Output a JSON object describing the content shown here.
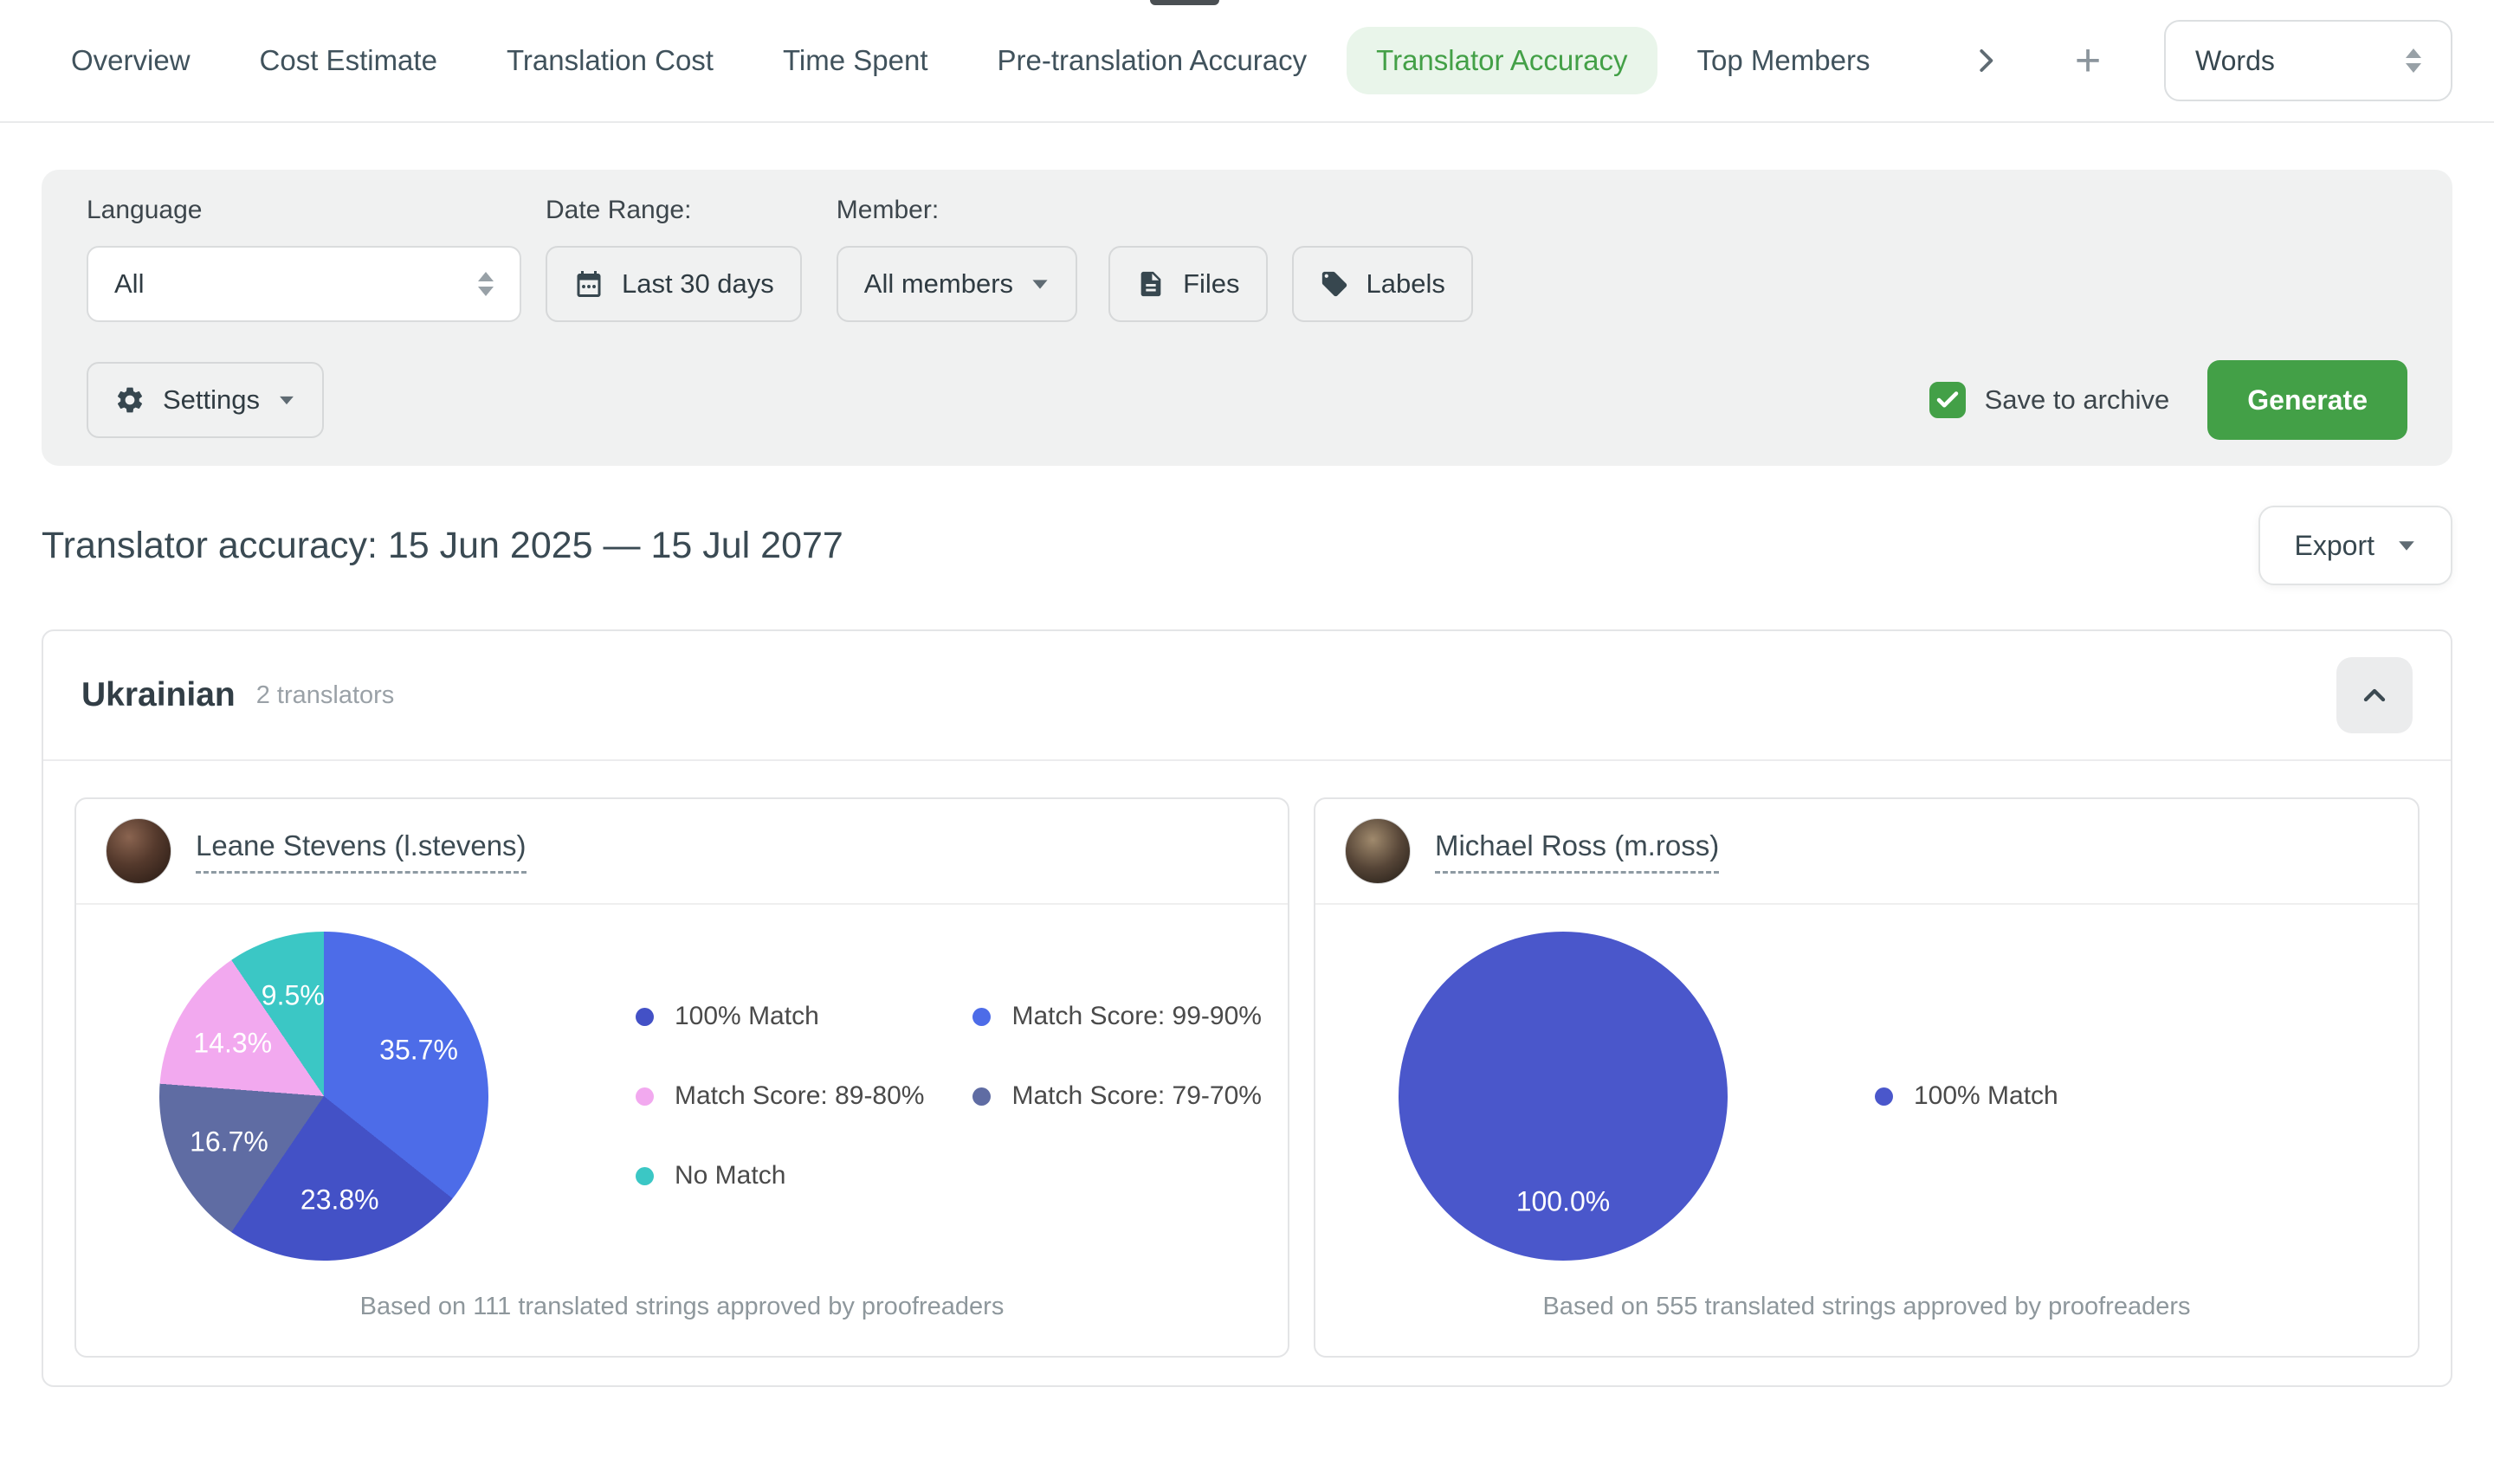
{
  "accent": {
    "green": "#43a047",
    "green_bg": "#e9f5ea"
  },
  "tabs": {
    "items": [
      "Overview",
      "Cost Estimate",
      "Translation Cost",
      "Time Spent",
      "Pre-translation Accuracy",
      "Translator Accuracy",
      "Top Members"
    ],
    "active": "Translator Accuracy",
    "unit_select_value": "Words"
  },
  "filters": {
    "language_label": "Language",
    "language_value": "All",
    "date_range_label": "Date Range:",
    "date_range_value": "Last 30 days",
    "member_label": "Member:",
    "member_value": "All members",
    "files_label": "Files",
    "labels_label": "Labels",
    "settings_label": "Settings",
    "save_to_archive_label": "Save to archive",
    "save_to_archive_checked": true,
    "generate_label": "Generate"
  },
  "report": {
    "title": "Translator accuracy: 15 Jun 2025 — 15 Jul 2077",
    "export_label": "Export"
  },
  "group": {
    "language": "Ukrainian",
    "translators_count": "2 translators"
  },
  "chart_data": [
    {
      "type": "pie",
      "translator": "Leane Stevens (l.stevens)",
      "footnote": "Based on 111 translated strings approved by proofreaders",
      "slices": [
        {
          "label": "Match Score: 99-90%",
          "value": 35.7,
          "display": "35.7%",
          "color": "#4D6CE8"
        },
        {
          "label": "100% Match",
          "value": 23.8,
          "display": "23.8%",
          "color": "#4351C6"
        },
        {
          "label": "Match Score: 79-70%",
          "value": 16.7,
          "display": "16.7%",
          "color": "#5F6CA3"
        },
        {
          "label": "Match Score: 89-80%",
          "value": 14.3,
          "display": "14.3%",
          "color": "#F2A9EF"
        },
        {
          "label": "No Match",
          "value": 9.5,
          "display": "9.5%",
          "color": "#3BC7C5"
        }
      ],
      "legend": [
        "100% Match",
        "Match Score: 99-90%",
        "Match Score: 89-80%",
        "Match Score: 79-70%",
        "No Match"
      ]
    },
    {
      "type": "pie",
      "translator": "Michael Ross (m.ross)",
      "footnote": "Based on 555 translated strings approved by proofreaders",
      "slices": [
        {
          "label": "100% Match",
          "value": 100.0,
          "display": "100.0%",
          "color": "#4A57CB"
        }
      ],
      "legend": [
        "100% Match"
      ]
    }
  ]
}
